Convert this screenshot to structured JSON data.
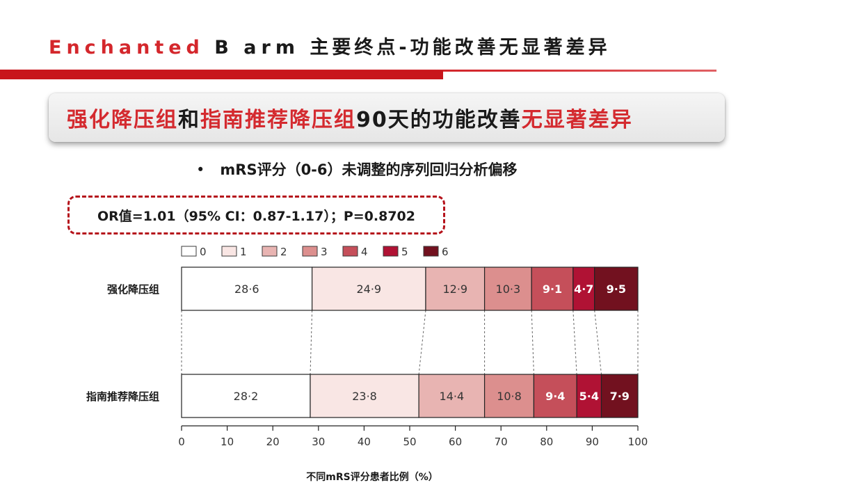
{
  "slide": {
    "title_prefix": "Enchanted",
    "title_b": "B",
    "title_arm": "arm",
    "title_rest": "主要终点-功能改善无显著差异",
    "banner": [
      {
        "text": "强化降压组",
        "red": true
      },
      {
        "text": "和",
        "red": false
      },
      {
        "text": "指南推荐降压组",
        "red": true
      },
      {
        "text": "90天的功能改善",
        "red": false
      },
      {
        "text": "无显著差异",
        "red": true
      }
    ],
    "bullet": "•",
    "bullet_text": "mRS评分（0-6）未调整的序列回归分析偏移",
    "or_text": "OR值=1.01（95% CI：0.87-1.17）；P=0.8702"
  },
  "chart_data": {
    "type": "stacked-bar-horizontal",
    "xlabel": "不同mRS评分患者比例（%）",
    "xlim": [
      0,
      100
    ],
    "xticks": [
      0,
      10,
      20,
      30,
      40,
      50,
      60,
      70,
      80,
      90,
      100
    ],
    "legend_position": "top",
    "legend": [
      "0",
      "1",
      "2",
      "3",
      "4",
      "5",
      "6"
    ],
    "colors": [
      "#ffffff",
      "#f9e6e4",
      "#e8b4b2",
      "#dc8f8e",
      "#c54f5a",
      "#b01234",
      "#72111f"
    ],
    "rows": [
      {
        "label": "强化降压组",
        "values": [
          28.6,
          24.9,
          12.9,
          10.3,
          9.1,
          4.7,
          9.5
        ],
        "display": [
          "28·6",
          "24·9",
          "12·9",
          "10·3",
          "9·1",
          "4·7",
          "9·5"
        ]
      },
      {
        "label": "指南推荐降压组",
        "values": [
          28.2,
          23.8,
          14.4,
          10.8,
          9.4,
          5.4,
          7.9
        ],
        "display": [
          "28·2",
          "23·8",
          "14·4",
          "10·8",
          "9·4",
          "5·4",
          "7·9"
        ]
      }
    ]
  }
}
